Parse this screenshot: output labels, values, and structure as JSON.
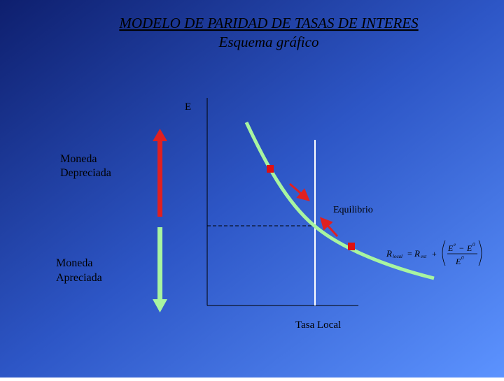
{
  "header": {
    "title": "MODELO DE PARIDAD DE TASAS DE INTERES",
    "subtitle": "Esquema gráfico"
  },
  "diagram": {
    "y_axis_label": "E",
    "x_axis_label": "Tasa Local",
    "upper_label": [
      "Moneda",
      "Depreciada"
    ],
    "lower_label": [
      "Moneda",
      "Apreciada"
    ],
    "equilibrium_label": "Equilibrio",
    "formula": {
      "lhs": "R",
      "lhs_sub": "local",
      "equals": "=",
      "term": "R",
      "term_sub": "ext",
      "plus": "+",
      "num_a": "E",
      "num_a_sup": "e",
      "minus": "−",
      "num_b": "E",
      "num_b_sup": "0",
      "den": "E",
      "den_sup": "0"
    }
  }
}
